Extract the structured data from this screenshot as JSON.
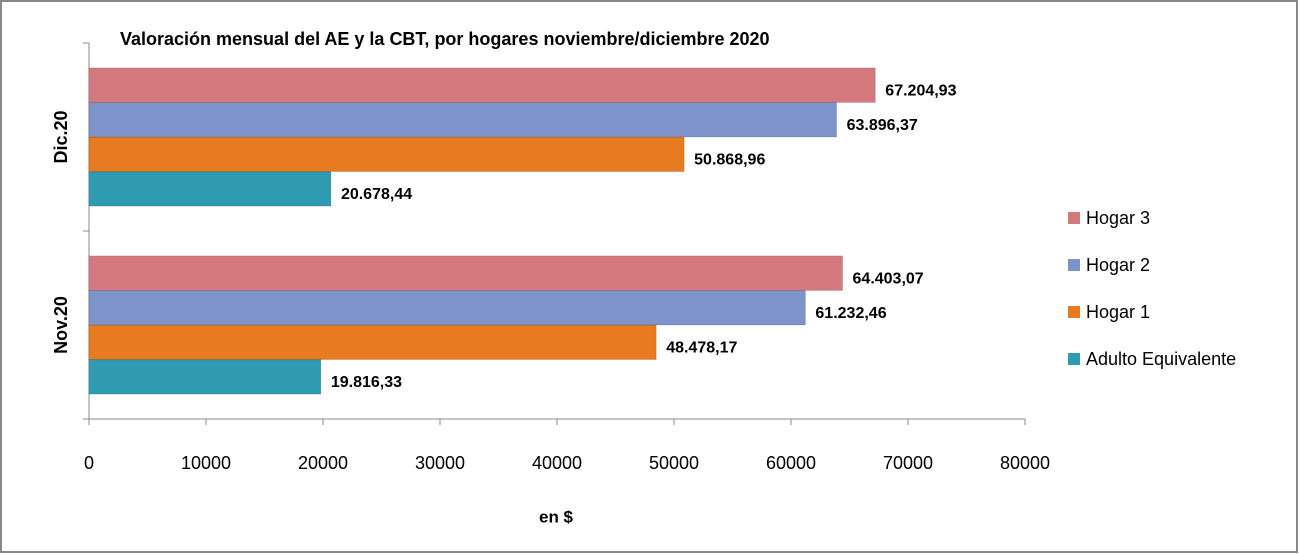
{
  "chart_data": {
    "type": "barh",
    "title": "Valoración mensual del AE y la CBT, por hogares  noviembre/diciembre 2020",
    "xlabel": "en $",
    "categories": [
      "Nov.20",
      "Dic.20"
    ],
    "series": [
      {
        "name": "Adulto Equivalente",
        "color": "#2e9bb0",
        "values": [
          19816.33,
          20678.44
        ],
        "value_labels": [
          "19.816,33",
          "20.678,44"
        ]
      },
      {
        "name": "Hogar 1",
        "color": "#e87b20",
        "values": [
          48478.17,
          50868.96
        ],
        "value_labels": [
          "48.478,17",
          "50.868,96"
        ]
      },
      {
        "name": "Hogar 2",
        "color": "#7d93c9",
        "values": [
          61232.46,
          63896.37
        ],
        "value_labels": [
          "61.232,46",
          "63.896,37"
        ]
      },
      {
        "name": "Hogar 3",
        "color": "#d47a7e",
        "values": [
          64403.07,
          67204.93
        ],
        "value_labels": [
          "64.403,07",
          "67.204,93"
        ]
      }
    ],
    "xlim": [
      0,
      80000
    ],
    "xticks": [
      0,
      10000,
      20000,
      30000,
      40000,
      50000,
      60000,
      70000,
      80000
    ],
    "legend": "right"
  }
}
